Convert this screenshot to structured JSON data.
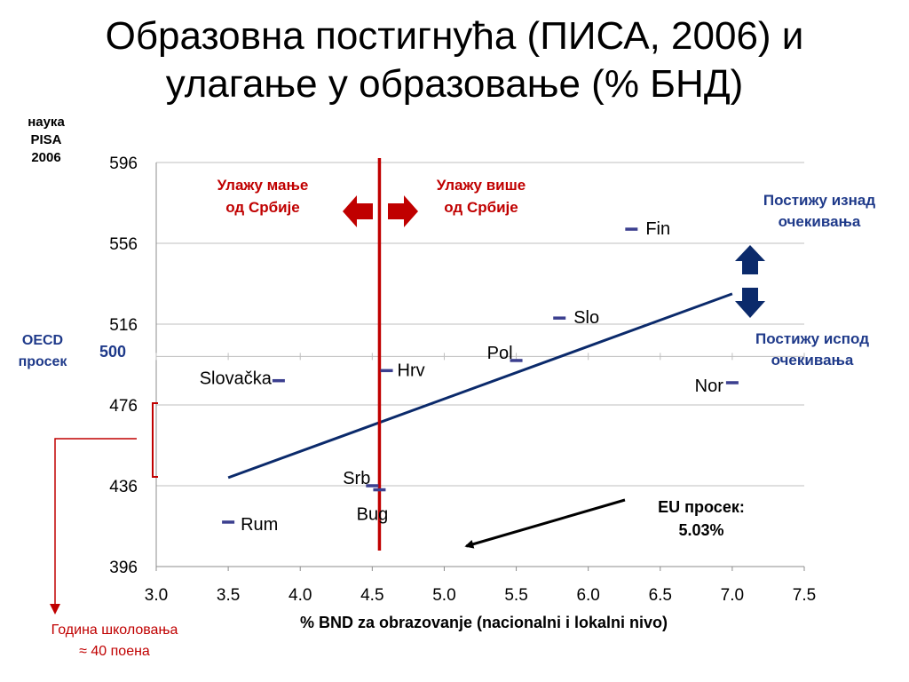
{
  "title_line1": "Образовна постигнућа (ПИСА, 2006) и",
  "title_line2": "улагање у образовање (% БНД)",
  "y_header": [
    "наука",
    "PISA",
    "2006"
  ],
  "oecd": {
    "label_line1": "OECD",
    "label_line2": "просек",
    "value": "500"
  },
  "invest_less": {
    "line1": "Улажу мање",
    "line2": "од Србије"
  },
  "invest_more": {
    "line1": "Улажу више",
    "line2": "од Србије"
  },
  "above": {
    "line1": "Постижу изнад",
    "line2": "очекивања"
  },
  "below": {
    "line1": "Постижу испод",
    "line2": "очекивања"
  },
  "eu_avg": {
    "line1": "EU просек:",
    "line2": "5.03%"
  },
  "school_year": {
    "line1": "Година школовања",
    "line2": "≈ 40 поена"
  },
  "colors": {
    "regression": "#0b2a6b",
    "serbia_line": "#c00000",
    "arrow_red": "#c00000",
    "arrow_blue": "#0b2a6b",
    "marker": "#3b3f8f"
  },
  "chart_data": {
    "type": "scatter",
    "title": "Образовна постигнућа (ПИСА, 2006) и улагање у образовање (% БНД)",
    "xlabel": "% BND za obrazovanje (nacionalni i lokalni nivo)",
    "ylabel": "наука PISA 2006",
    "xlim": [
      3.0,
      7.5
    ],
    "ylim": [
      396,
      596
    ],
    "x_ticks": [
      "3.0",
      "3.5",
      "4.0",
      "4.5",
      "5.0",
      "5.5",
      "6.0",
      "6.5",
      "7.0",
      "7.5"
    ],
    "y_ticks": [
      "396",
      "436",
      "476",
      "516",
      "556",
      "596"
    ],
    "grid": "horizontal",
    "points": [
      {
        "label": "Fin",
        "x": 6.3,
        "y": 563
      },
      {
        "label": "Slo",
        "x": 5.8,
        "y": 519
      },
      {
        "label": "Pol",
        "x": 5.5,
        "y": 498
      },
      {
        "label": "Hrv",
        "x": 4.6,
        "y": 493
      },
      {
        "label": "Slovačka",
        "x": 3.85,
        "y": 488
      },
      {
        "label": "Nor",
        "x": 7.0,
        "y": 487
      },
      {
        "label": "Srb",
        "x": 4.5,
        "y": 436
      },
      {
        "label": "Bug",
        "x": 4.55,
        "y": 434
      },
      {
        "label": "Rum",
        "x": 3.5,
        "y": 418
      }
    ],
    "trendline": {
      "x": [
        3.5,
        7.0
      ],
      "y": [
        440,
        531
      ]
    },
    "serbia_line_x": 4.55,
    "oecd_average_y": 500,
    "eu_average_x": 5.03
  }
}
